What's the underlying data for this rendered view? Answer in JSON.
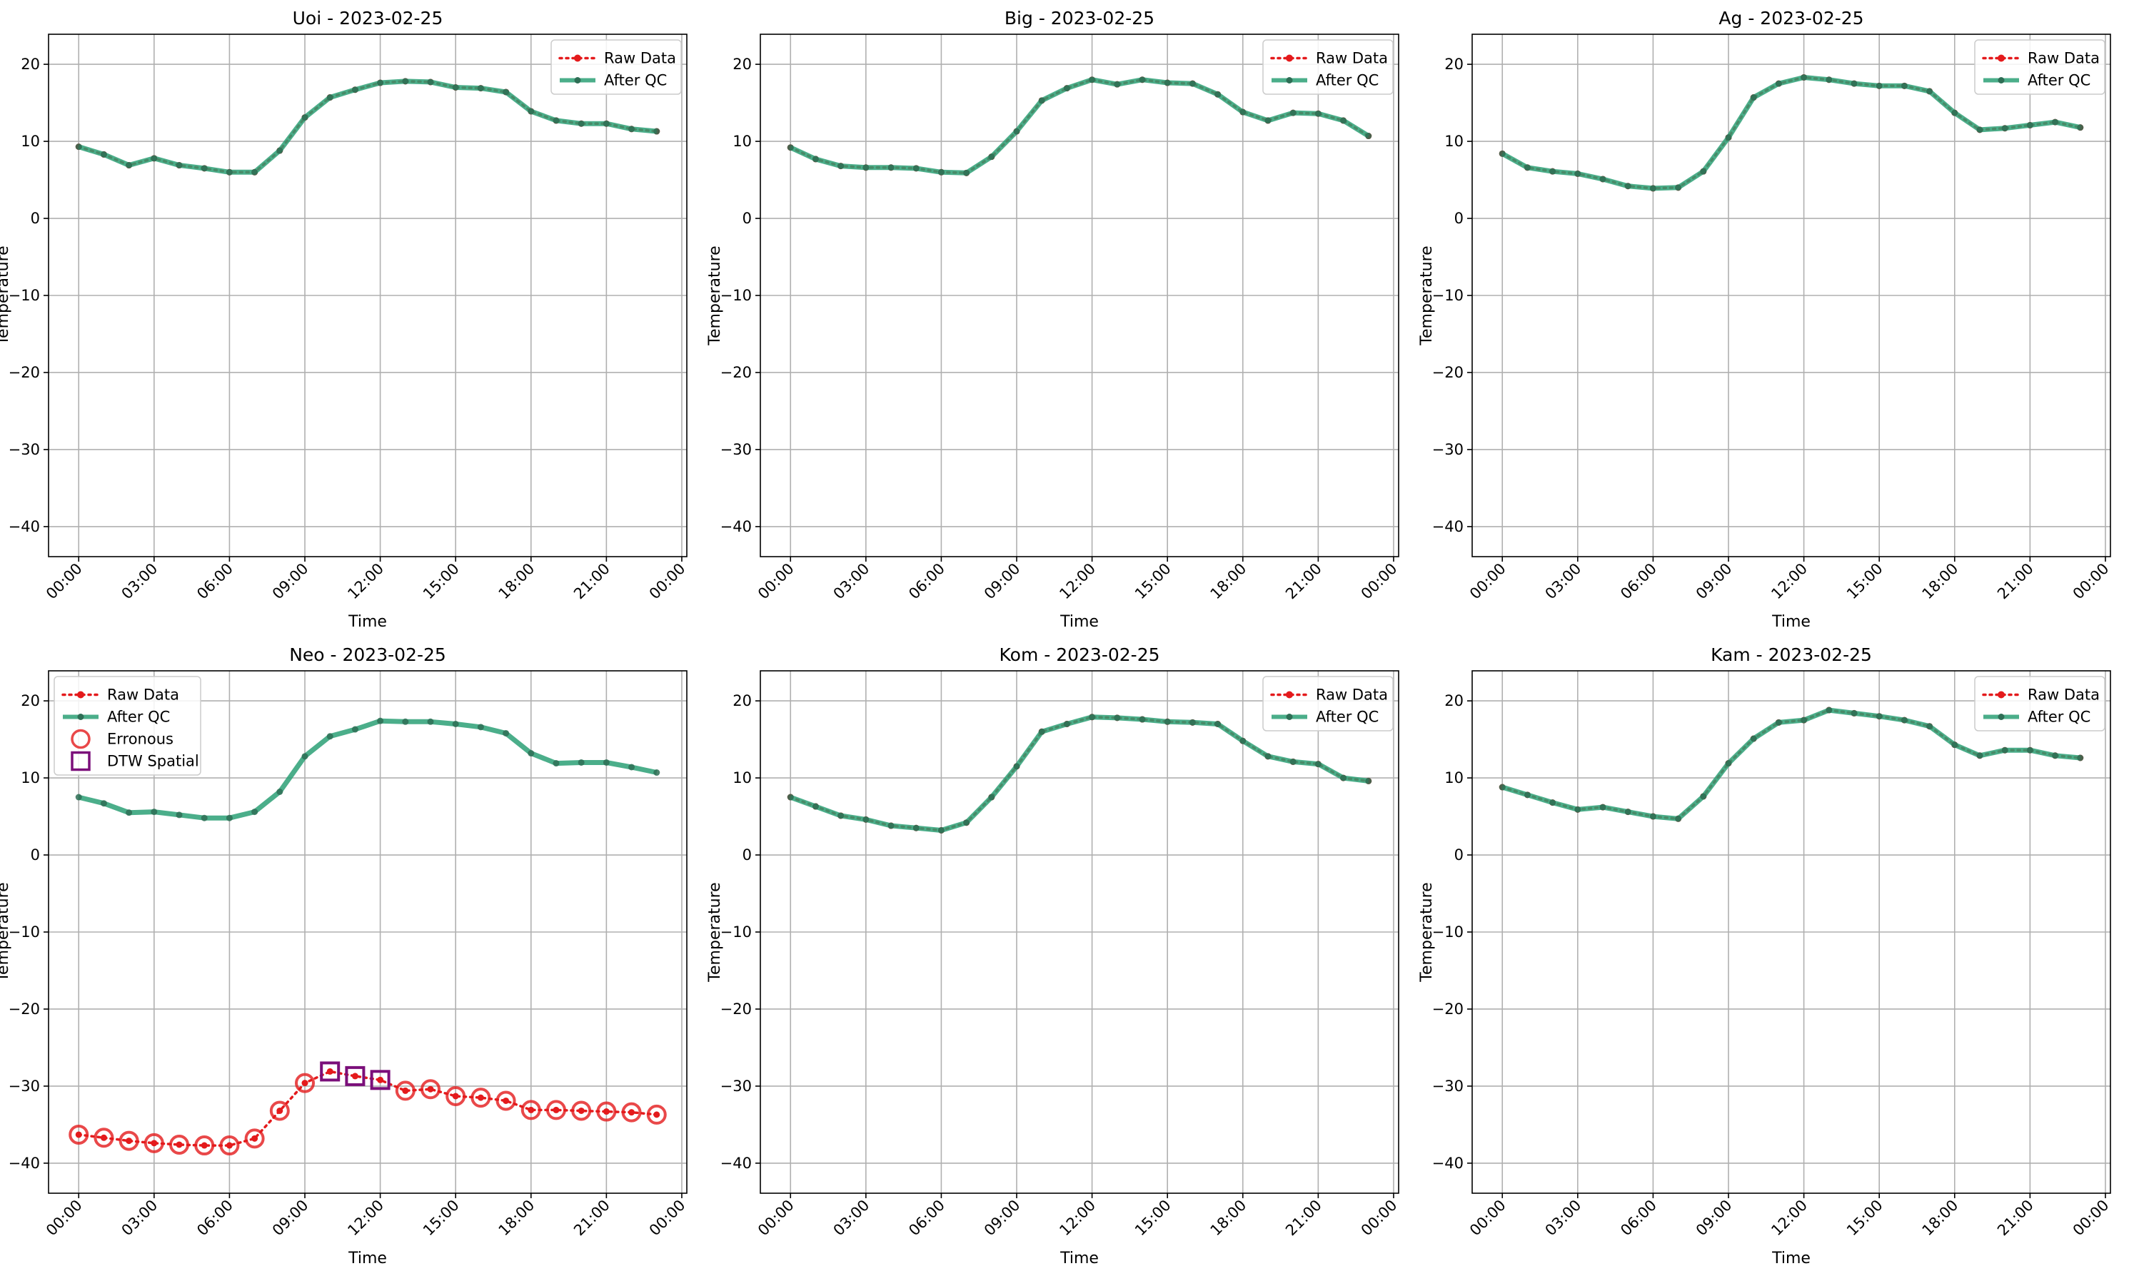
{
  "colors": {
    "raw": "#e41a1c",
    "after_qc": "#2ca076",
    "after_qc_marker": "#2e6e55",
    "erroneous": "#e41a1c",
    "dtw_spatial": "#7b0f7a",
    "grid": "#b0b0b0",
    "axis": "#000000"
  },
  "legend_labels": {
    "raw": "Raw Data",
    "after_qc": "After QC",
    "erroneous": "Erronous",
    "dtw_spatial": "DTW Spatial"
  },
  "chart_data": [
    {
      "type": "line",
      "title": "Uoi - 2023-02-25",
      "xlabel": "Time",
      "ylabel": "Temperature",
      "ylim": [
        -40,
        20
      ],
      "yticks": [
        -40,
        -30,
        -20,
        -10,
        0,
        10,
        20
      ],
      "xlim_hours": [
        -1.2,
        24.2
      ],
      "xtick_labels": [
        "00:00",
        "03:00",
        "06:00",
        "09:00",
        "12:00",
        "15:00",
        "18:00",
        "21:00",
        "00:00"
      ],
      "grid": true,
      "legend_position": "upper right",
      "series": [
        {
          "name": "Raw Data",
          "x_hours": [
            0,
            1,
            2,
            3,
            4,
            5,
            6,
            7,
            8,
            9,
            10,
            11,
            12,
            13,
            14,
            15,
            16,
            17,
            18,
            19,
            20,
            21,
            22,
            23
          ],
          "values": [
            9.3,
            8.3,
            6.9,
            7.8,
            6.9,
            6.5,
            6.0,
            6.0,
            8.8,
            13.1,
            15.7,
            16.7,
            17.6,
            17.8,
            17.7,
            17.0,
            16.9,
            16.4,
            13.9,
            12.7,
            12.3,
            12.3,
            11.6,
            11.3
          ]
        },
        {
          "name": "After QC",
          "x_hours": [
            0,
            1,
            2,
            3,
            4,
            5,
            6,
            7,
            8,
            9,
            10,
            11,
            12,
            13,
            14,
            15,
            16,
            17,
            18,
            19,
            20,
            21,
            22,
            23
          ],
          "values": [
            9.3,
            8.3,
            6.9,
            7.8,
            6.9,
            6.5,
            6.0,
            6.0,
            8.8,
            13.1,
            15.7,
            16.7,
            17.6,
            17.8,
            17.7,
            17.0,
            16.9,
            16.4,
            13.9,
            12.7,
            12.3,
            12.3,
            11.6,
            11.3
          ]
        }
      ],
      "erroneous_hours": [],
      "dtw_spatial_hours": []
    },
    {
      "type": "line",
      "title": "Big - 2023-02-25",
      "xlabel": "Time",
      "ylabel": "Temperature",
      "ylim": [
        -40,
        20
      ],
      "yticks": [
        -40,
        -30,
        -20,
        -10,
        0,
        10,
        20
      ],
      "xlim_hours": [
        -1.2,
        24.2
      ],
      "xtick_labels": [
        "00:00",
        "03:00",
        "06:00",
        "09:00",
        "12:00",
        "15:00",
        "18:00",
        "21:00",
        "00:00"
      ],
      "grid": true,
      "legend_position": "upper right",
      "series": [
        {
          "name": "Raw Data",
          "x_hours": [
            0,
            1,
            2,
            3,
            4,
            5,
            6,
            7,
            8,
            9,
            10,
            11,
            12,
            13,
            14,
            15,
            16,
            17,
            18,
            19,
            20,
            21,
            22,
            23
          ],
          "values": [
            9.2,
            7.7,
            6.8,
            6.6,
            6.6,
            6.5,
            6.0,
            5.9,
            8.0,
            11.3,
            15.3,
            16.9,
            18.0,
            17.4,
            18.0,
            17.6,
            17.5,
            16.1,
            13.8,
            12.7,
            13.7,
            13.6,
            12.7,
            10.7
          ]
        },
        {
          "name": "After QC",
          "x_hours": [
            0,
            1,
            2,
            3,
            4,
            5,
            6,
            7,
            8,
            9,
            10,
            11,
            12,
            13,
            14,
            15,
            16,
            17,
            18,
            19,
            20,
            21,
            22,
            23
          ],
          "values": [
            9.2,
            7.7,
            6.8,
            6.6,
            6.6,
            6.5,
            6.0,
            5.9,
            8.0,
            11.3,
            15.3,
            16.9,
            18.0,
            17.4,
            18.0,
            17.6,
            17.5,
            16.1,
            13.8,
            12.7,
            13.7,
            13.6,
            12.7,
            10.7
          ]
        }
      ],
      "erroneous_hours": [],
      "dtw_spatial_hours": []
    },
    {
      "type": "line",
      "title": "Ag - 2023-02-25",
      "xlabel": "Time",
      "ylabel": "Temperature",
      "ylim": [
        -40,
        20
      ],
      "yticks": [
        -40,
        -30,
        -20,
        -10,
        0,
        10,
        20
      ],
      "xlim_hours": [
        -1.2,
        24.2
      ],
      "xtick_labels": [
        "00:00",
        "03:00",
        "06:00",
        "09:00",
        "12:00",
        "15:00",
        "18:00",
        "21:00",
        "00:00"
      ],
      "grid": true,
      "legend_position": "upper right",
      "series": [
        {
          "name": "Raw Data",
          "x_hours": [
            0,
            1,
            2,
            3,
            4,
            5,
            6,
            7,
            8,
            9,
            10,
            11,
            12,
            13,
            14,
            15,
            16,
            17,
            18,
            19,
            20,
            21,
            22,
            23
          ],
          "values": [
            8.4,
            6.6,
            6.1,
            5.8,
            5.1,
            4.2,
            3.9,
            4.0,
            6.1,
            10.5,
            15.7,
            17.5,
            18.3,
            18.0,
            17.5,
            17.2,
            17.2,
            16.5,
            13.7,
            11.5,
            11.7,
            12.1,
            12.5,
            11.8
          ]
        },
        {
          "name": "After QC",
          "x_hours": [
            0,
            1,
            2,
            3,
            4,
            5,
            6,
            7,
            8,
            9,
            10,
            11,
            12,
            13,
            14,
            15,
            16,
            17,
            18,
            19,
            20,
            21,
            22,
            23
          ],
          "values": [
            8.4,
            6.6,
            6.1,
            5.8,
            5.1,
            4.2,
            3.9,
            4.0,
            6.1,
            10.5,
            15.7,
            17.5,
            18.3,
            18.0,
            17.5,
            17.2,
            17.2,
            16.5,
            13.7,
            11.5,
            11.7,
            12.1,
            12.5,
            11.8
          ]
        }
      ],
      "erroneous_hours": [],
      "dtw_spatial_hours": []
    },
    {
      "type": "line",
      "title": "Neo - 2023-02-25",
      "xlabel": "Time",
      "ylabel": "Temperature",
      "ylim": [
        -40,
        20
      ],
      "yticks": [
        -40,
        -30,
        -20,
        -10,
        0,
        10,
        20
      ],
      "xlim_hours": [
        -1.2,
        24.2
      ],
      "xtick_labels": [
        "00:00",
        "03:00",
        "06:00",
        "09:00",
        "12:00",
        "15:00",
        "18:00",
        "21:00",
        "00:00"
      ],
      "grid": true,
      "legend_position": "upper left",
      "series": [
        {
          "name": "Raw Data",
          "x_hours": [
            0,
            1,
            2,
            3,
            4,
            5,
            6,
            7,
            8,
            9,
            10,
            11,
            12,
            13,
            14,
            15,
            16,
            17,
            18,
            19,
            20,
            21,
            22,
            23
          ],
          "values": [
            -36.3,
            -36.7,
            -37.1,
            -37.4,
            -37.6,
            -37.7,
            -37.7,
            -36.8,
            -33.2,
            -29.6,
            -28.1,
            -28.7,
            -29.2,
            -30.6,
            -30.4,
            -31.3,
            -31.5,
            -31.9,
            -33.1,
            -33.1,
            -33.2,
            -33.3,
            -33.4,
            -33.7
          ]
        },
        {
          "name": "After QC",
          "x_hours": [
            0,
            1,
            2,
            3,
            4,
            5,
            6,
            7,
            8,
            9,
            10,
            11,
            12,
            13,
            14,
            15,
            16,
            17,
            18,
            19,
            20,
            21,
            22,
            23
          ],
          "values": [
            7.5,
            6.7,
            5.5,
            5.6,
            5.2,
            4.8,
            4.8,
            5.6,
            8.2,
            12.8,
            15.4,
            16.3,
            17.4,
            17.3,
            17.3,
            17.0,
            16.6,
            15.8,
            13.2,
            11.9,
            12.0,
            12.0,
            11.4,
            10.7
          ]
        }
      ],
      "erroneous_hours": [
        0,
        1,
        2,
        3,
        4,
        5,
        6,
        7,
        8,
        9,
        13,
        14,
        15,
        16,
        17,
        18,
        19,
        20,
        21,
        22,
        23
      ],
      "dtw_spatial_hours": [
        10,
        11,
        12
      ]
    },
    {
      "type": "line",
      "title": "Kom - 2023-02-25",
      "xlabel": "Time",
      "ylabel": "Temperature",
      "ylim": [
        -40,
        20
      ],
      "yticks": [
        -40,
        -30,
        -20,
        -10,
        0,
        10,
        20
      ],
      "xlim_hours": [
        -1.2,
        24.2
      ],
      "xtick_labels": [
        "00:00",
        "03:00",
        "06:00",
        "09:00",
        "12:00",
        "15:00",
        "18:00",
        "21:00",
        "00:00"
      ],
      "grid": true,
      "legend_position": "upper right",
      "series": [
        {
          "name": "Raw Data",
          "x_hours": [
            0,
            1,
            2,
            3,
            4,
            5,
            6,
            7,
            8,
            9,
            10,
            11,
            12,
            13,
            14,
            15,
            16,
            17,
            18,
            19,
            20,
            21,
            22,
            23
          ],
          "values": [
            7.5,
            6.3,
            5.1,
            4.6,
            3.8,
            3.5,
            3.2,
            4.2,
            7.5,
            11.5,
            16.0,
            17.0,
            17.9,
            17.8,
            17.6,
            17.3,
            17.2,
            17.0,
            14.8,
            12.8,
            12.1,
            11.8,
            10.0,
            9.6
          ]
        },
        {
          "name": "After QC",
          "x_hours": [
            0,
            1,
            2,
            3,
            4,
            5,
            6,
            7,
            8,
            9,
            10,
            11,
            12,
            13,
            14,
            15,
            16,
            17,
            18,
            19,
            20,
            21,
            22,
            23
          ],
          "values": [
            7.5,
            6.3,
            5.1,
            4.6,
            3.8,
            3.5,
            3.2,
            4.2,
            7.5,
            11.5,
            16.0,
            17.0,
            17.9,
            17.8,
            17.6,
            17.3,
            17.2,
            17.0,
            14.8,
            12.8,
            12.1,
            11.8,
            10.0,
            9.6
          ]
        }
      ],
      "erroneous_hours": [],
      "dtw_spatial_hours": []
    },
    {
      "type": "line",
      "title": "Kam - 2023-02-25",
      "xlabel": "Time",
      "ylabel": "Temperature",
      "ylim": [
        -40,
        20
      ],
      "yticks": [
        -40,
        -30,
        -20,
        -10,
        0,
        10,
        20
      ],
      "xlim_hours": [
        -1.2,
        24.2
      ],
      "xtick_labels": [
        "00:00",
        "03:00",
        "06:00",
        "09:00",
        "12:00",
        "15:00",
        "18:00",
        "21:00",
        "00:00"
      ],
      "grid": true,
      "legend_position": "upper right",
      "series": [
        {
          "name": "Raw Data",
          "x_hours": [
            0,
            1,
            2,
            3,
            4,
            5,
            6,
            7,
            8,
            9,
            10,
            11,
            12,
            13,
            14,
            15,
            16,
            17,
            18,
            19,
            20,
            21,
            22,
            23
          ],
          "values": [
            8.8,
            7.8,
            6.8,
            5.9,
            6.2,
            5.6,
            5.0,
            4.7,
            7.6,
            11.9,
            15.1,
            17.2,
            17.5,
            18.8,
            18.4,
            18.0,
            17.5,
            16.7,
            14.3,
            12.9,
            13.6,
            13.6,
            12.9,
            12.6
          ]
        },
        {
          "name": "After QC",
          "x_hours": [
            0,
            1,
            2,
            3,
            4,
            5,
            6,
            7,
            8,
            9,
            10,
            11,
            12,
            13,
            14,
            15,
            16,
            17,
            18,
            19,
            20,
            21,
            22,
            23
          ],
          "values": [
            8.8,
            7.8,
            6.8,
            5.9,
            6.2,
            5.6,
            5.0,
            4.7,
            7.6,
            11.9,
            15.1,
            17.2,
            17.5,
            18.8,
            18.4,
            18.0,
            17.5,
            16.7,
            14.3,
            12.9,
            13.6,
            13.6,
            12.9,
            12.6
          ]
        }
      ],
      "erroneous_hours": [],
      "dtw_spatial_hours": []
    }
  ]
}
